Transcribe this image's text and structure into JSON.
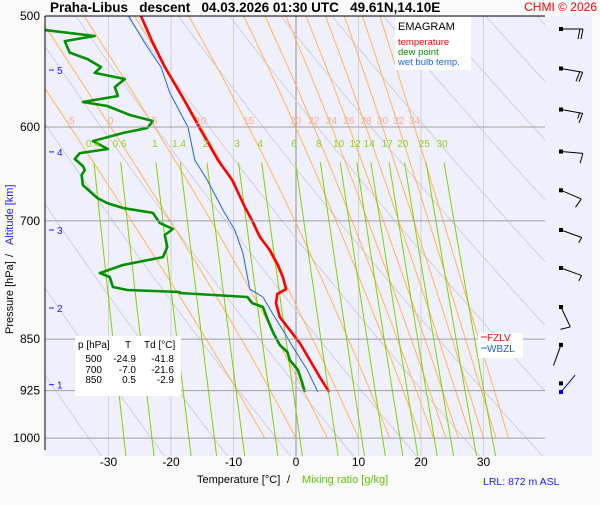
{
  "header": {
    "title": "Praha-Libus   descent   04.03.2026 01:30 UTC   49.61N,14.10E",
    "copyright": "CHMI © 2026"
  },
  "legend": {
    "title": "EMAGRAM",
    "items": [
      {
        "label": "temperature",
        "color": "#ff0000"
      },
      {
        "label": "dew point",
        "color": "#009000"
      },
      {
        "label": "wet bulb temp.",
        "color": "#1e64e6"
      }
    ]
  },
  "levels_table": {
    "headers": [
      "p [hPa]",
      "T",
      "Td [°C]"
    ],
    "rows": [
      [
        "500",
        "-24.9",
        "-41.8"
      ],
      [
        "700",
        "-7.0",
        "-21.6"
      ],
      [
        "850",
        "0.5",
        "-2.9"
      ]
    ]
  },
  "level_legend": [
    {
      "label": "FZLV",
      "color": "#ff0000"
    },
    {
      "label": "WBZL",
      "color": "#1e64e6"
    }
  ],
  "footer": {
    "lrl": "LRL: 872 m ASL"
  },
  "chart_data": {
    "type": "line",
    "title": "EMAGRAM",
    "xlabel": "Temperature [°C]",
    "xlabel_sep": "/",
    "xlabel2": "Mixing ratio [g/kg]",
    "ylabel": "Pressure [hPa]",
    "ylabel_sep": "/",
    "ylabel2": "Altitude [km]",
    "xlim": [
      -40.2,
      40
    ],
    "ylim": [
      500,
      1030
    ],
    "yscale": "log",
    "x_ticks": [
      -30,
      -20,
      -10,
      0,
      10,
      20,
      30
    ],
    "x_tick_labels": [
      "-30",
      "-20",
      "-10",
      "0",
      "10",
      "20",
      "30"
    ],
    "y_ticks": [
      500,
      600,
      700,
      850,
      925,
      1000
    ],
    "y_tick_labels": [
      "500",
      "600",
      "700",
      "850",
      "925",
      "1000"
    ],
    "altitude_ticks": [
      {
        "km": "5",
        "p": 546.4
      },
      {
        "km": "4",
        "p": 625
      },
      {
        "km": "3",
        "p": 710.5
      },
      {
        "km": "2",
        "p": 807.6
      },
      {
        "km": "1",
        "p": 916
      }
    ],
    "moist_adiabats": {
      "values": [
        -5,
        0,
        5,
        10,
        15,
        20,
        22,
        24,
        26,
        28,
        30,
        32,
        34
      ],
      "labels": [
        "-5",
        "0",
        "5",
        "10",
        "15",
        "20",
        "22",
        "24",
        "26",
        "28",
        "30",
        "32",
        "34"
      ],
      "color": "#ffb45a"
    },
    "mixing_ratios": {
      "values": [
        0.4,
        0.6,
        1,
        1.4,
        2,
        3,
        4,
        6,
        8,
        10,
        12,
        14,
        17,
        20,
        25,
        30
      ],
      "labels": [
        "0.4",
        "0.6",
        "1",
        "1.4",
        "2",
        "3",
        "4",
        "6",
        "8",
        "10",
        "12",
        "14",
        "17",
        "20",
        "25",
        "30"
      ],
      "color": "#84d000"
    },
    "dry_adiabats_K": [
      230,
      240,
      250,
      260,
      270,
      280,
      290,
      300,
      310,
      320,
      330,
      340,
      350,
      360,
      370,
      380,
      390,
      400,
      410,
      420,
      430,
      440,
      450
    ],
    "series": [
      {
        "name": "temperature",
        "color": "#ff0000",
        "points": [
          [
            499,
            -24.9
          ],
          [
            522.7,
            -22.9
          ],
          [
            543.7,
            -21
          ],
          [
            573.9,
            -17.9
          ],
          [
            600,
            -15.5
          ],
          [
            633.4,
            -12.5
          ],
          [
            654.6,
            -10.2
          ],
          [
            684.2,
            -8.2
          ],
          [
            700,
            -7
          ],
          [
            718.7,
            -5.8
          ],
          [
            734.3,
            -4.2
          ],
          [
            752.6,
            -2.9
          ],
          [
            767.6,
            -2.1
          ],
          [
            782.9,
            -1.6
          ],
          [
            789.3,
            -3
          ],
          [
            801.1,
            -3.2
          ],
          [
            819.8,
            -2.6
          ],
          [
            837.5,
            -1
          ],
          [
            855.4,
            0.6
          ],
          [
            879.6,
            2.2
          ],
          [
            904.6,
            3.8
          ],
          [
            927.1,
            5.3
          ]
        ]
      },
      {
        "name": "wet bulb temp.",
        "color": "#1e64e6",
        "points": [
          [
            499,
            -26.9
          ],
          [
            522.7,
            -24.2
          ],
          [
            543.7,
            -21.6
          ],
          [
            567.3,
            -20.2
          ],
          [
            600,
            -17.3
          ],
          [
            633.4,
            -16.2
          ],
          [
            654.6,
            -14.2
          ],
          [
            687.5,
            -11.7
          ],
          [
            710.5,
            -9.8
          ],
          [
            737.9,
            -8.5
          ],
          [
            782.9,
            -7.4
          ],
          [
            793.2,
            -5.3
          ],
          [
            814.4,
            -3.8
          ],
          [
            837.5,
            -2.1
          ],
          [
            861,
            -0.5
          ],
          [
            894.2,
            1.8
          ],
          [
            927.1,
            3.5
          ]
        ]
      },
      {
        "name": "dew point",
        "color": "#009000",
        "points": [
          [
            511.6,
            -40.3
          ],
          [
            516.7,
            -32.2
          ],
          [
            521,
            -37
          ],
          [
            531,
            -36.2
          ],
          [
            536.6,
            -33.4
          ],
          [
            543.7,
            -31.2
          ],
          [
            549,
            -32.2
          ],
          [
            554.5,
            -27.4
          ],
          [
            561.9,
            -29
          ],
          [
            570.2,
            -28.5
          ],
          [
            575.8,
            -34.1
          ],
          [
            579.6,
            -30.2
          ],
          [
            588.3,
            -26.6
          ],
          [
            594.1,
            -22.9
          ],
          [
            601,
            -23.8
          ],
          [
            605.9,
            -27.7
          ],
          [
            614,
            -32.5
          ],
          [
            622,
            -30.1
          ],
          [
            626.2,
            -34.6
          ],
          [
            632.3,
            -35.4
          ],
          [
            639.8,
            -34.1
          ],
          [
            644,
            -33.8
          ],
          [
            649.3,
            -34.3
          ],
          [
            660,
            -34.1
          ],
          [
            674.2,
            -31.8
          ],
          [
            679.8,
            -30.2
          ],
          [
            685.3,
            -27.7
          ],
          [
            690.9,
            -22.9
          ],
          [
            702.4,
            -21.8
          ],
          [
            709.4,
            -19.7
          ],
          [
            716.4,
            -21
          ],
          [
            730.6,
            -20.6
          ],
          [
            742.8,
            -21.3
          ],
          [
            752.6,
            -27.7
          ],
          [
            762.6,
            -31.4
          ],
          [
            767.6,
            -29.8
          ],
          [
            780.3,
            -29.3
          ],
          [
            784.1,
            -27
          ],
          [
            786.7,
            -18.6
          ],
          [
            788,
            -18.6
          ],
          [
            793.2,
            -7.8
          ],
          [
            801.1,
            -7
          ],
          [
            806.3,
            -5.3
          ],
          [
            823.8,
            -4.5
          ],
          [
            840.2,
            -3.7
          ],
          [
            858.2,
            -2.6
          ],
          [
            868.1,
            -1.4
          ],
          [
            879.6,
            -1
          ],
          [
            894.2,
            0.3
          ],
          [
            913.5,
            1
          ],
          [
            927.1,
            1.4
          ]
        ]
      }
    ],
    "wind_barbs": [
      {
        "p": 510.8,
        "dir_deg": 90,
        "speed_kt": 20,
        "color": "#000000"
      },
      {
        "p": 545,
        "dir_deg": 100,
        "speed_kt": 20,
        "color": "#000000"
      },
      {
        "p": 583,
        "dir_deg": 100,
        "speed_kt": 15,
        "color": "#000000"
      },
      {
        "p": 624.6,
        "dir_deg": 95,
        "speed_kt": 10,
        "color": "#000000"
      },
      {
        "p": 665.7,
        "dir_deg": 113,
        "speed_kt": 10,
        "color": "#000000"
      },
      {
        "p": 710.5,
        "dir_deg": 110,
        "speed_kt": 5,
        "color": "#000000"
      },
      {
        "p": 756.3,
        "dir_deg": 110,
        "speed_kt": 5,
        "color": "#000000"
      },
      {
        "p": 806.3,
        "dir_deg": 155,
        "speed_kt": 10,
        "color": "#000000"
      },
      {
        "p": 858,
        "dir_deg": 200,
        "speed_kt": 2,
        "color": "#000000"
      },
      {
        "p": 914,
        "dir_deg": 0,
        "speed_kt": 0,
        "color": "#000000"
      },
      {
        "p": 927,
        "dir_deg": 40,
        "speed_kt": 2,
        "color": "#0000ff"
      }
    ]
  }
}
